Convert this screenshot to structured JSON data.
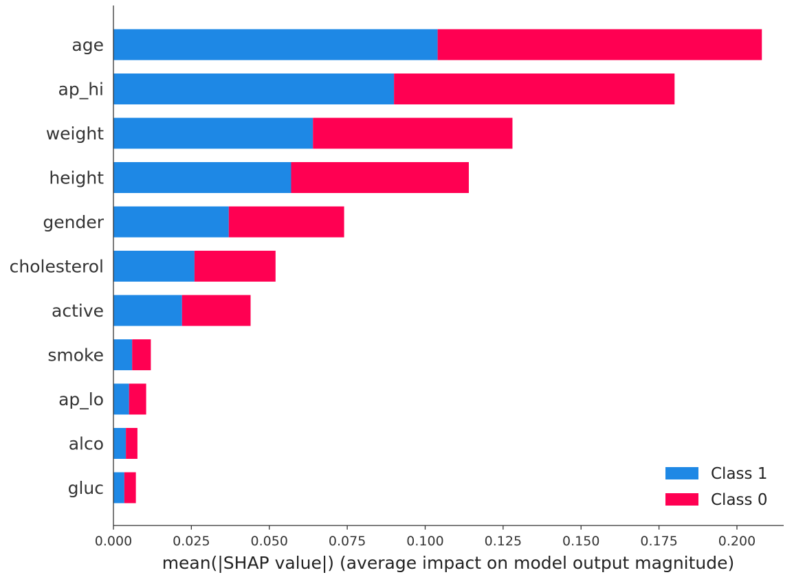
{
  "chart_data": {
    "type": "bar",
    "orientation": "horizontal",
    "stacked": true,
    "categories": [
      "age",
      "ap_hi",
      "weight",
      "height",
      "gender",
      "cholesterol",
      "active",
      "smoke",
      "ap_lo",
      "alco",
      "gluc"
    ],
    "series": [
      {
        "name": "Class 1",
        "color": "#1e88e5",
        "values": [
          0.104,
          0.09,
          0.064,
          0.057,
          0.037,
          0.026,
          0.022,
          0.006,
          0.005,
          0.004,
          0.0035
        ]
      },
      {
        "name": "Class 0",
        "color": "#ff0052",
        "values": [
          0.104,
          0.09,
          0.064,
          0.057,
          0.037,
          0.026,
          0.022,
          0.006,
          0.0055,
          0.0037,
          0.0037
        ]
      }
    ],
    "title": "",
    "xlabel": "mean(|SHAP value|) (average impact on model output magnitude)",
    "ylabel": "",
    "xlim": [
      0,
      0.215
    ],
    "xticks": [
      0.0,
      0.025,
      0.05,
      0.075,
      0.1,
      0.125,
      0.15,
      0.175,
      0.2
    ],
    "xtick_labels": [
      "0.000",
      "0.025",
      "0.050",
      "0.075",
      "0.100",
      "0.125",
      "0.150",
      "0.175",
      "0.200"
    ],
    "grid": false,
    "legend_position": "bottom-right"
  }
}
